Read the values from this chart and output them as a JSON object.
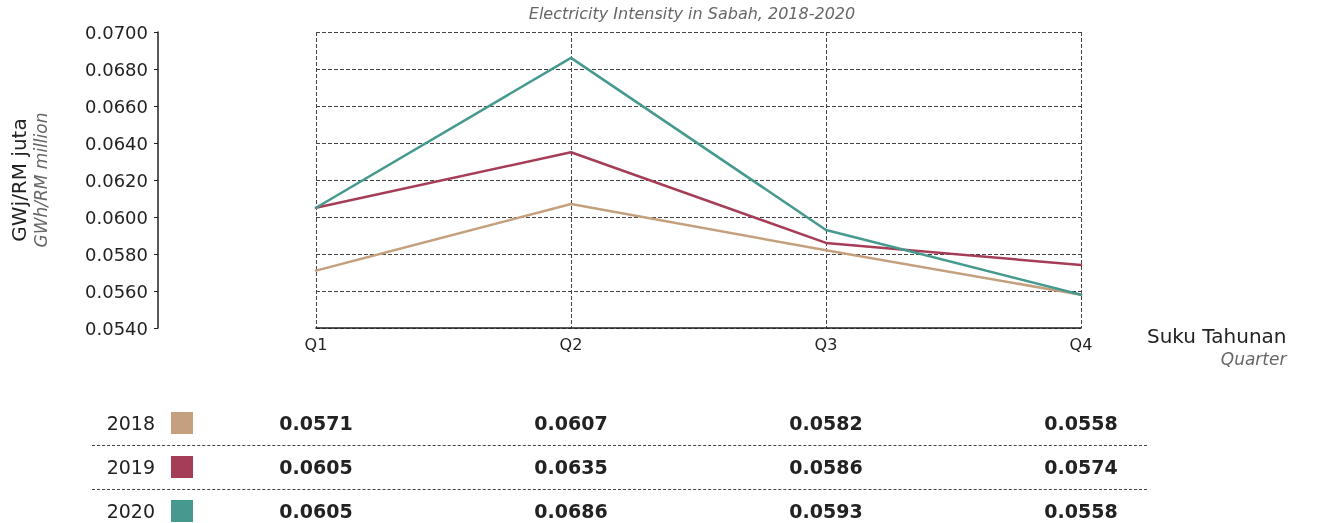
{
  "chart_data": {
    "type": "line",
    "title": "Electricity Intensity in Sabah, 2018-2020",
    "xlabel": "Suku Tahunan\nQuarter",
    "ylabel": "GWj/RM juta\nGWh/RM million",
    "categories": [
      "Q1",
      "Q2",
      "Q3",
      "Q4"
    ],
    "series": [
      {
        "name": "2018",
        "color": "#c4a07e",
        "values": [
          0.0571,
          0.0607,
          0.0582,
          0.0558
        ]
      },
      {
        "name": "2019",
        "color": "#a63d57",
        "values": [
          0.0605,
          0.0635,
          0.0586,
          0.0574
        ]
      },
      {
        "name": "2020",
        "color": "#45998f",
        "values": [
          0.0605,
          0.0686,
          0.0593,
          0.0558
        ]
      }
    ],
    "ylim": [
      0.054,
      0.07
    ],
    "yticks": [
      {
        "value": 0.054,
        "label": "0.0540"
      },
      {
        "value": 0.056,
        "label": "0.0560"
      },
      {
        "value": 0.058,
        "label": "0.0580"
      },
      {
        "value": 0.06,
        "label": "0.0600"
      },
      {
        "value": 0.062,
        "label": "0.0620"
      },
      {
        "value": 0.064,
        "label": "0.0640"
      },
      {
        "value": 0.066,
        "label": "0.0660"
      },
      {
        "value": 0.068,
        "label": "0.0680"
      },
      {
        "value": 0.07,
        "label": "0.0700"
      }
    ],
    "grid": true,
    "legend": "bottom",
    "marker": "none",
    "line_style": "solid",
    "data_labels": true
  }
}
